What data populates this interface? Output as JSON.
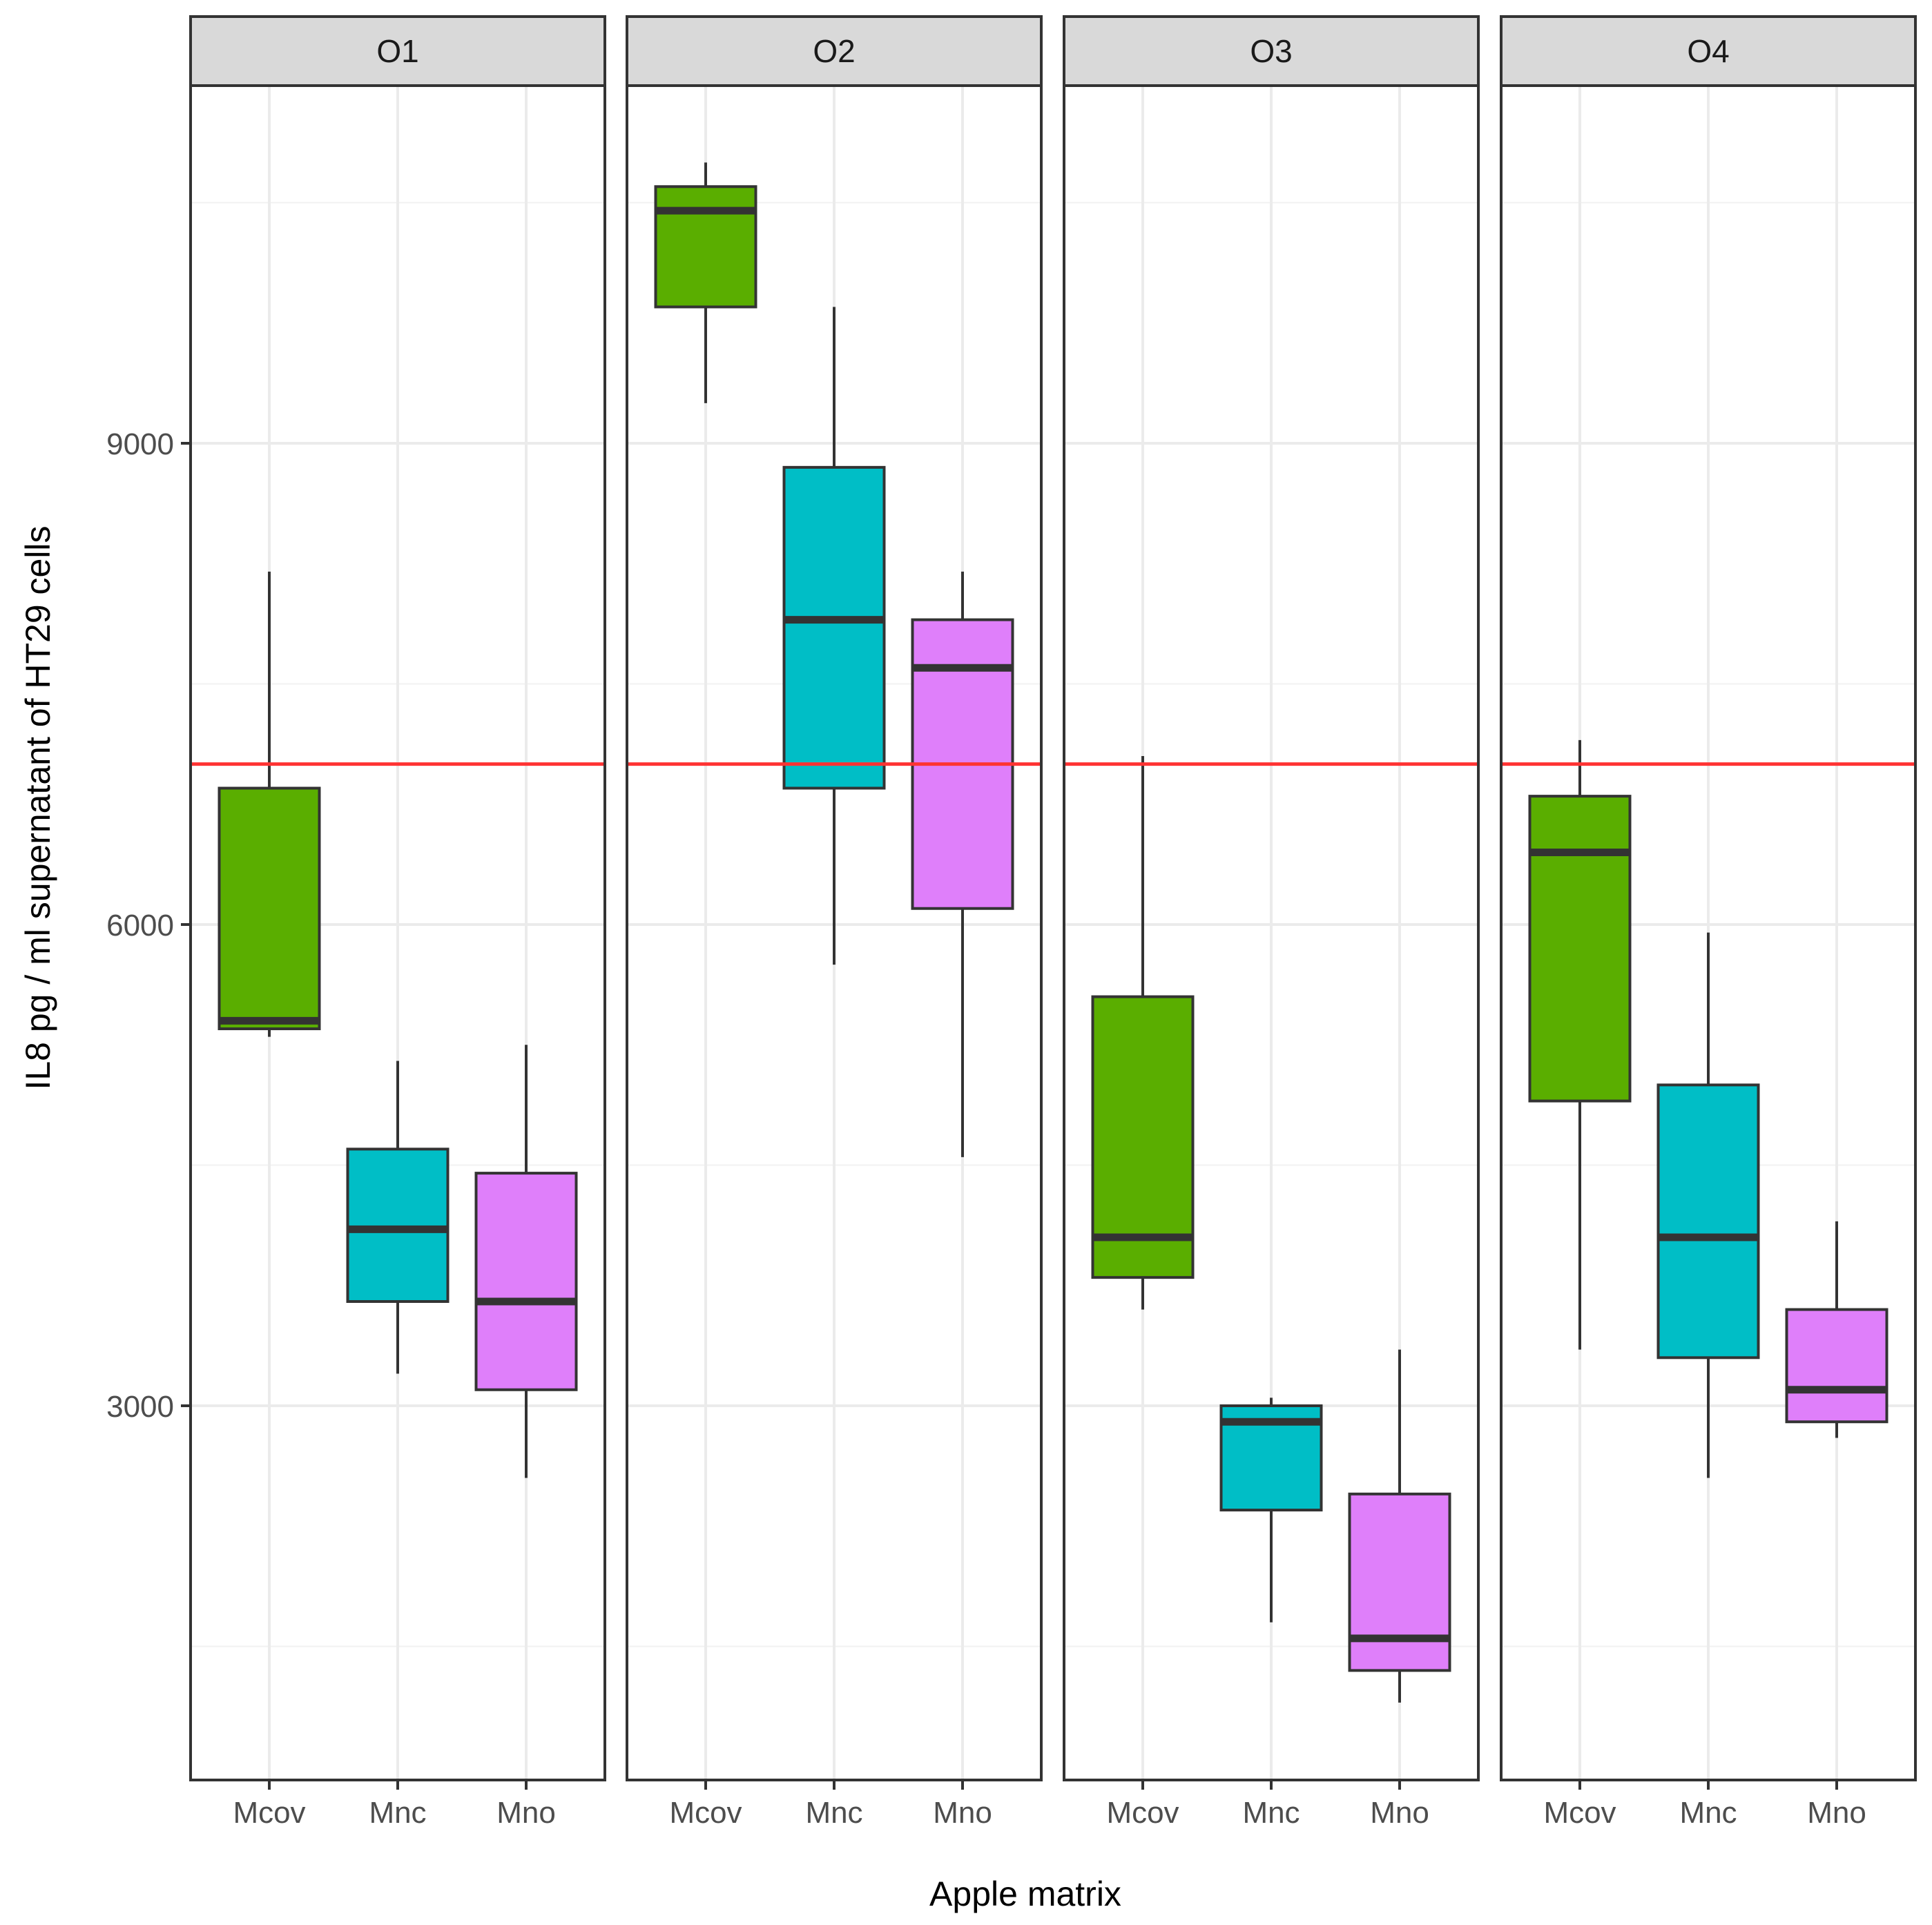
{
  "chart_data": {
    "type": "boxplot",
    "title": "",
    "xlabel": "Apple matrix",
    "ylabel": "IL8 pg / ml supernatant of HT29 cells",
    "ylim": [
      400,
      11000
    ],
    "yticks": [
      3000,
      6000,
      9000
    ],
    "ytick_labels": [
      "3000",
      "6000",
      "9000"
    ],
    "categories": [
      "Mcov",
      "Mnc",
      "Mno"
    ],
    "reference_line": {
      "value": 7000,
      "color": "#ff3333"
    },
    "colors": {
      "Mcov": "#5aae00",
      "Mnc": "#00bec6",
      "Mno": "#df7ffa"
    },
    "facets": [
      {
        "label": "O1",
        "boxes": [
          {
            "category": "Mcov",
            "whisker_low": 5300,
            "q1": 5350,
            "median": 5400,
            "q3": 6850,
            "whisker_high": 8200
          },
          {
            "category": "Mnc",
            "whisker_low": 3200,
            "q1": 3650,
            "median": 4100,
            "q3": 4600,
            "whisker_high": 5150
          },
          {
            "category": "Mno",
            "whisker_low": 2550,
            "q1": 3100,
            "median": 3650,
            "q3": 4450,
            "whisker_high": 5250
          }
        ]
      },
      {
        "label": "O2",
        "boxes": [
          {
            "category": "Mcov",
            "whisker_low": 9250,
            "q1": 9850,
            "median": 10450,
            "q3": 10600,
            "whisker_high": 10750
          },
          {
            "category": "Mnc",
            "whisker_low": 5750,
            "q1": 6850,
            "median": 7900,
            "q3": 8850,
            "whisker_high": 9850
          },
          {
            "category": "Mno",
            "whisker_low": 4550,
            "q1": 6100,
            "median": 7600,
            "q3": 7900,
            "whisker_high": 8200
          }
        ]
      },
      {
        "label": "O3",
        "boxes": [
          {
            "category": "Mcov",
            "whisker_low": 3600,
            "q1": 3800,
            "median": 4050,
            "q3": 5550,
            "whisker_high": 7050
          },
          {
            "category": "Mnc",
            "whisker_low": 1650,
            "q1": 2350,
            "median": 2900,
            "q3": 3000,
            "whisker_high": 3050
          },
          {
            "category": "Mno",
            "whisker_low": 1150,
            "q1": 1350,
            "median": 1550,
            "q3": 2450,
            "whisker_high": 3350
          }
        ]
      },
      {
        "label": "O4",
        "boxes": [
          {
            "category": "Mcov",
            "whisker_low": 3350,
            "q1": 4900,
            "median": 6450,
            "q3": 6800,
            "whisker_high": 7150
          },
          {
            "category": "Mnc",
            "whisker_low": 2550,
            "q1": 3300,
            "median": 4050,
            "q3": 5000,
            "whisker_high": 5950
          },
          {
            "category": "Mno",
            "whisker_low": 2800,
            "q1": 2900,
            "median": 3100,
            "q3": 3600,
            "whisker_high": 4150
          }
        ]
      }
    ]
  }
}
